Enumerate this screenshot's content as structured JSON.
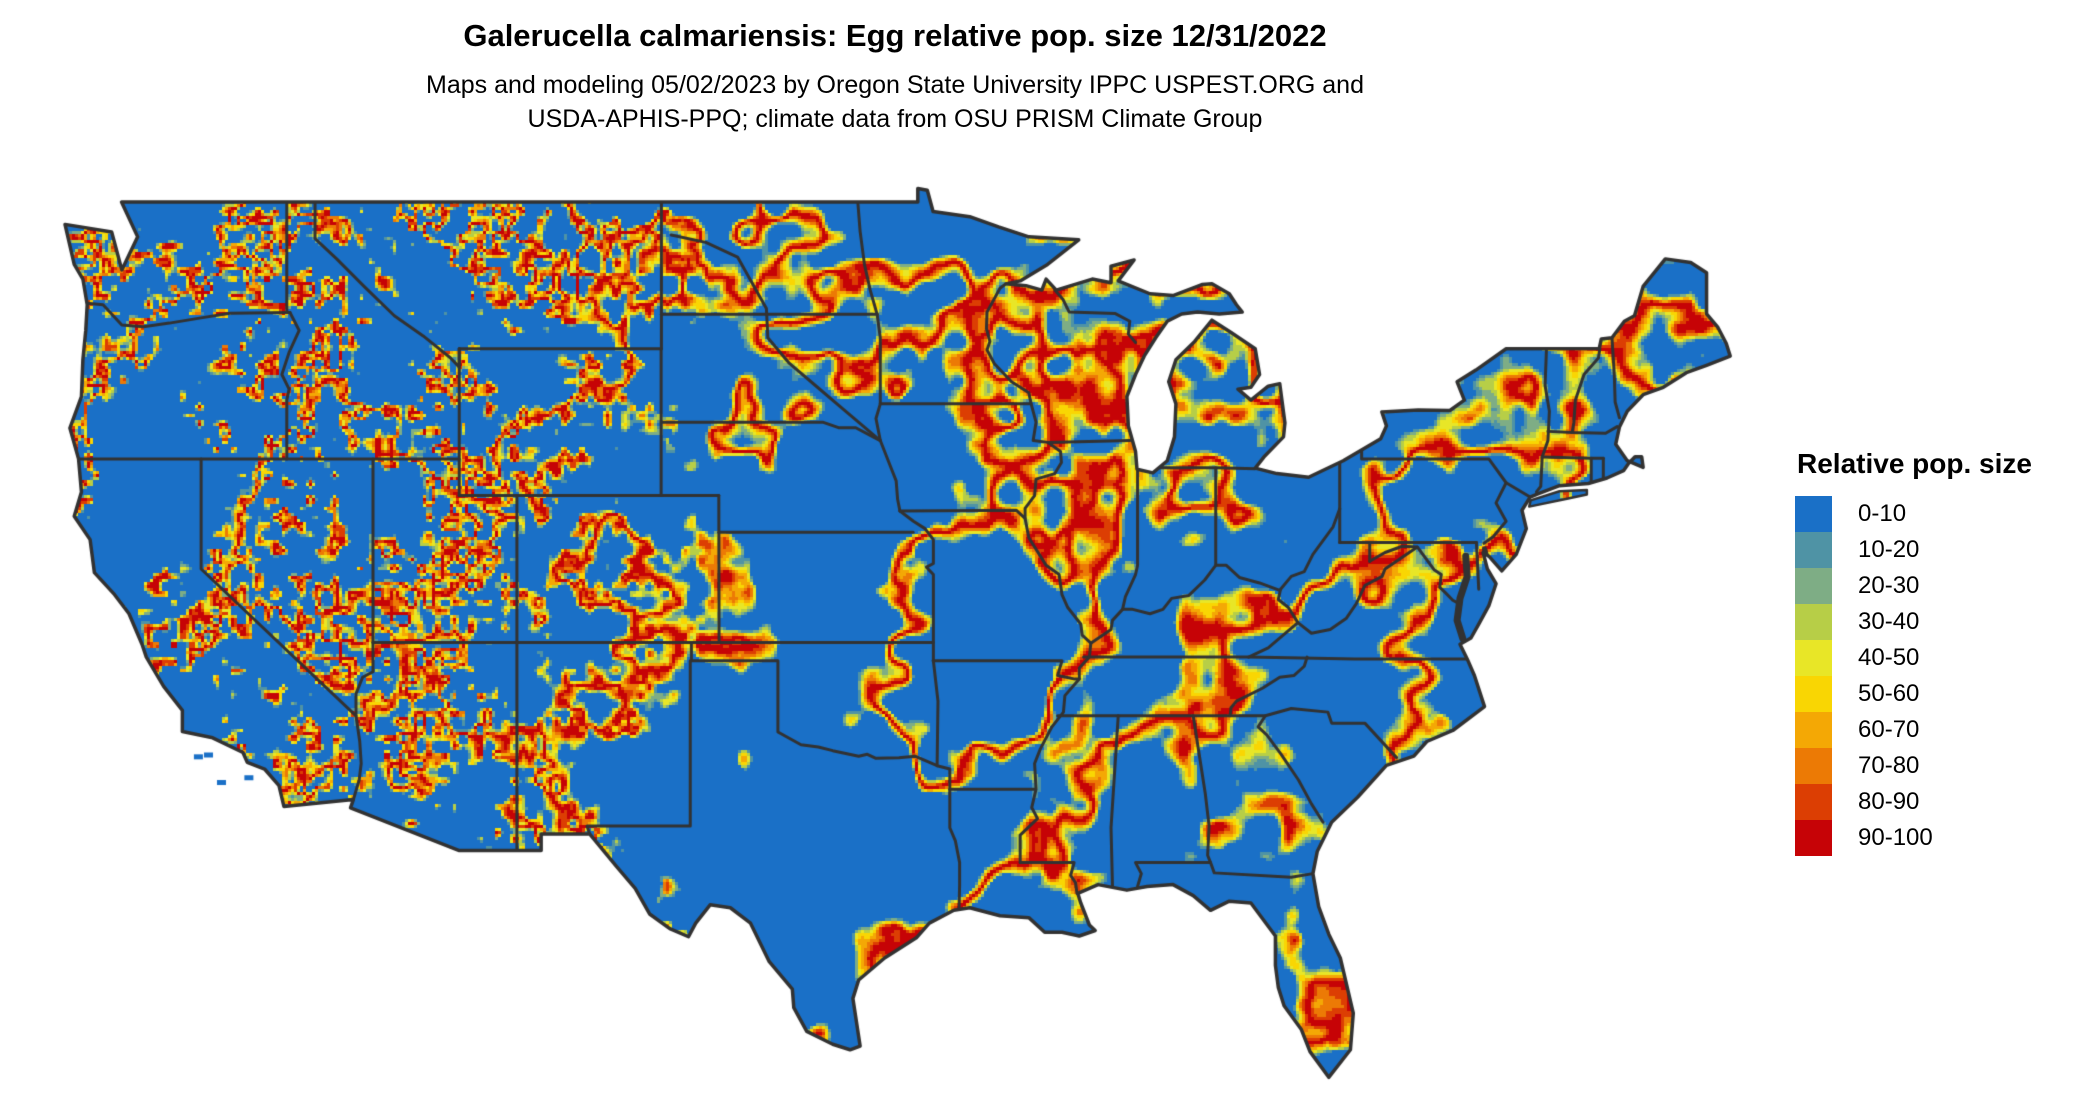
{
  "header": {
    "title": "Galerucella calmariensis: Egg relative pop. size 12/31/2022",
    "subtitle_line1": "Maps and modeling 05/02/2023 by Oregon State University IPPC USPEST.ORG and",
    "subtitle_line2": "USDA-APHIS-PPQ; climate data from OSU PRISM Climate Group"
  },
  "legend": {
    "title": "Relative pop. size",
    "items": [
      {
        "label": "0-10",
        "color": "#1a70c7"
      },
      {
        "label": "10-20",
        "color": "#4f93a5"
      },
      {
        "label": "20-30",
        "color": "#7ead85"
      },
      {
        "label": "30-40",
        "color": "#b7ce47"
      },
      {
        "label": "40-50",
        "color": "#e8e627"
      },
      {
        "label": "50-60",
        "color": "#f9d603"
      },
      {
        "label": "60-70",
        "color": "#f4a805"
      },
      {
        "label": "70-80",
        "color": "#ec7a05"
      },
      {
        "label": "80-90",
        "color": "#dc3e03"
      },
      {
        "label": "90-100",
        "color": "#c60306"
      }
    ]
  },
  "map": {
    "background_color": "#ffffff",
    "border_color": "#323232",
    "base_fill_color": "#1a70c7"
  },
  "chart_data": {
    "type": "heatmap",
    "title": "Galerucella calmariensis: Egg relative pop. size 12/31/2022",
    "legend_title": "Relative pop. size",
    "categories": [
      "0-10",
      "10-20",
      "20-30",
      "30-40",
      "40-50",
      "50-60",
      "60-70",
      "70-80",
      "80-90",
      "90-100"
    ],
    "colors": [
      "#1a70c7",
      "#4f93a5",
      "#7ead85",
      "#b7ce47",
      "#e8e627",
      "#f9d603",
      "#f4a805",
      "#ec7a05",
      "#dc3e03",
      "#c60306"
    ],
    "legend_position": "right",
    "region": "Continental United States with state boundaries"
  }
}
